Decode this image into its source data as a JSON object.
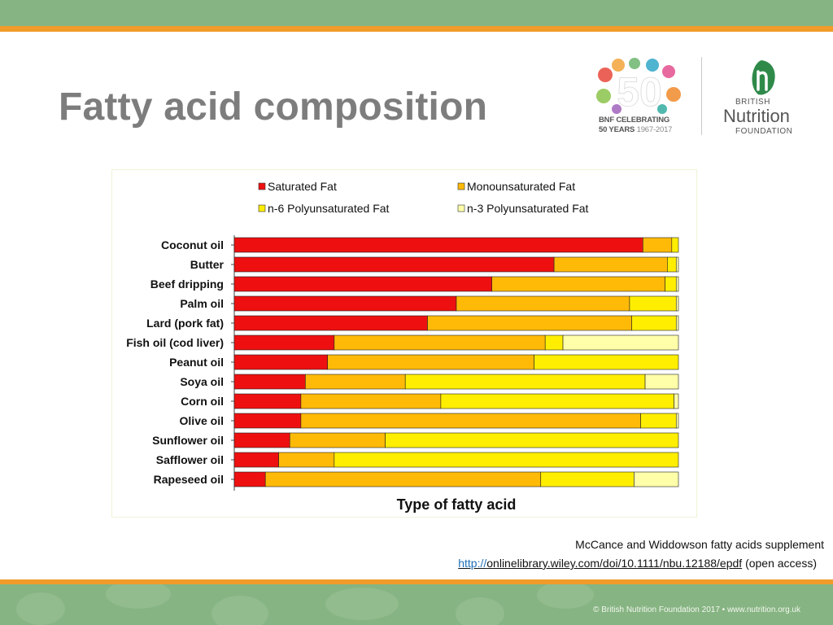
{
  "slide": {
    "title": "Fatty acid composition",
    "footer": "© British Nutrition Foundation 2017  •  www.nutrition.org.uk"
  },
  "logos": {
    "anniversary": {
      "numeral": "50",
      "caption_line1": "BNF CELEBRATING",
      "caption_line2": "50 YEARS",
      "caption_years": "1967-2017"
    },
    "bnf": {
      "line1": "BRITISH",
      "line2": "Nutrition",
      "line3": "FOUNDATION"
    }
  },
  "colors": {
    "saturated": "#ee1010",
    "mono": "#ffba08",
    "n6": "#ffee00",
    "n3": "#ffffaa",
    "title": "#7d7d7d",
    "band_green": "#86b482",
    "band_orange": "#f19b2a",
    "link_scheme": "#1f6fb5"
  },
  "chart_data": {
    "type": "bar",
    "orientation": "horizontal",
    "stacked": "percent",
    "xlabel": "Type of fatty acid",
    "legend_position": "top",
    "grid": false,
    "categories": [
      "Coconut oil",
      "Butter",
      "Beef dripping",
      "Palm oil",
      "Lard (pork fat)",
      "Fish oil (cod liver)",
      "Peanut oil",
      "Soya oil",
      "Corn oil",
      "Olive oil",
      "Sunflower oil",
      "Safflower oil",
      "Rapeseed oil"
    ],
    "series": [
      {
        "name": "Saturated Fat",
        "color": "#ee1010",
        "values": [
          92,
          72,
          58,
          50,
          43.5,
          22.5,
          21,
          16,
          15,
          15,
          12.5,
          10,
          7
        ]
      },
      {
        "name": "Monounsaturated Fat",
        "color": "#ffba08",
        "values": [
          6.5,
          25.5,
          39,
          39,
          46,
          47.5,
          46.5,
          22.5,
          31.5,
          76.5,
          21.5,
          12.5,
          62
        ]
      },
      {
        "name": "n-6 Polyunsaturated Fat",
        "color": "#ffee00",
        "values": [
          1.5,
          2,
          2.5,
          10.5,
          10,
          4,
          32.5,
          54,
          52.5,
          8,
          66,
          77.5,
          21
        ]
      },
      {
        "name": "n-3 Polyunsaturated Fat",
        "color": "#ffffaa",
        "values": [
          0,
          0.5,
          0.5,
          0.5,
          0.5,
          26,
          0,
          7.5,
          1,
          0.5,
          0,
          0,
          10
        ]
      }
    ]
  },
  "reference": {
    "text": "McCance and Widdowson fatty acids supplement",
    "url_scheme": "http://",
    "url_rest": "onlinelibrary.wiley.com/doi/10.1111/nbu.12188/epdf",
    "note": "(open access)"
  }
}
